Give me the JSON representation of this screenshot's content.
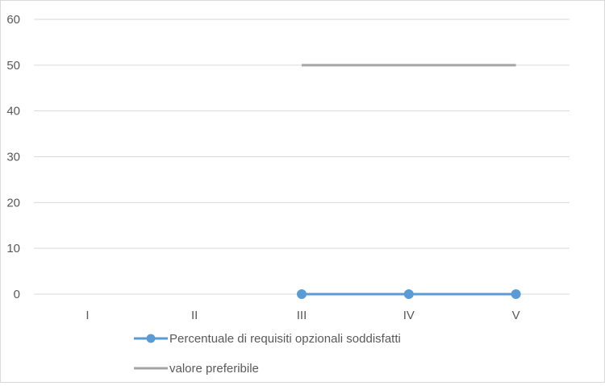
{
  "chart_data": {
    "type": "line",
    "categories": [
      "I",
      "II",
      "III",
      "IV",
      "V"
    ],
    "ylim": [
      0,
      60
    ],
    "yticks": [
      0,
      10,
      20,
      30,
      40,
      50,
      60
    ],
    "grid": true,
    "legend_position": "bottom",
    "series": [
      {
        "name": "Percentuale di requisiti opzionali soddisfatti",
        "values": [
          null,
          null,
          0,
          0,
          0
        ],
        "color": "#5b9bd5",
        "markers": true
      },
      {
        "name": "valore preferibile",
        "values": [
          null,
          null,
          50,
          50,
          50
        ],
        "color": "#a5a5a5",
        "markers": false
      }
    ]
  }
}
